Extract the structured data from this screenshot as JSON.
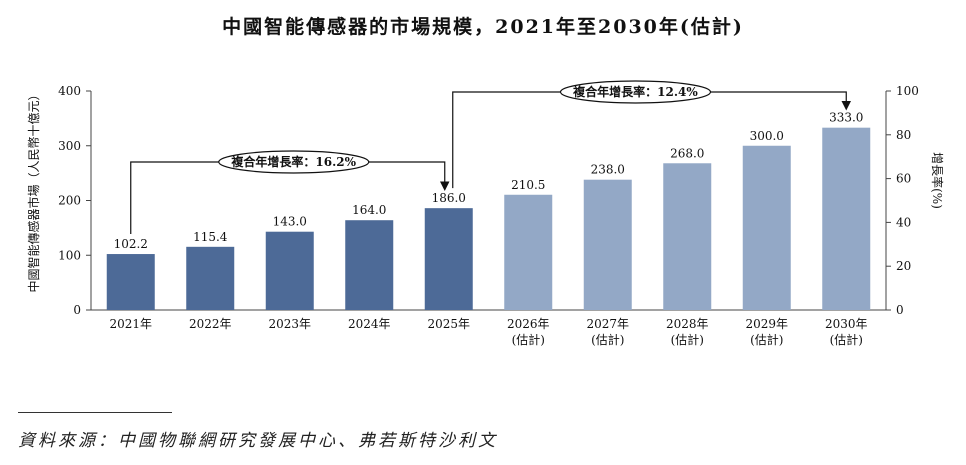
{
  "title": "中國智能傳感器的市場規模，2021年至2030年(估計)",
  "source": "資料來源：中國物聯網研究發展中心、弗若斯特沙利文",
  "colors": {
    "actual": "#4d6a97",
    "forecast": "#93a8c6",
    "axis": "#444444"
  },
  "chart_data": {
    "type": "bar",
    "categories": [
      "2021年",
      "2022年",
      "2023年",
      "2024年",
      "2025年",
      "2026年",
      "2027年",
      "2028年",
      "2029年",
      "2030年"
    ],
    "category_sublabels": [
      "",
      "",
      "",
      "",
      "",
      "(估計)",
      "(估計)",
      "(估計)",
      "(估計)",
      "(估計)"
    ],
    "values": [
      102.2,
      115.4,
      143.0,
      164.0,
      186.0,
      210.5,
      238.0,
      268.0,
      300.0,
      333.0
    ],
    "value_labels": [
      "102.2",
      "115.4",
      "143.0",
      "164.0",
      "186.0",
      "210.5",
      "238.0",
      "268.0",
      "300.0",
      "333.0"
    ],
    "forecast_from_index": 5,
    "ylabel": "中國智能傳感器市場（人民幣十億元）",
    "ylim": [
      0,
      400
    ],
    "yticks": [
      0,
      100,
      200,
      300,
      400
    ],
    "y2label": "增長率(%)",
    "y2lim": [
      0,
      100
    ],
    "y2ticks": [
      0,
      20,
      40,
      60,
      80,
      100
    ],
    "grid": false,
    "annotations": [
      {
        "text": "複合年增長率：16.2%",
        "from_index": 0,
        "to_index": 4
      },
      {
        "text": "複合年增長率：12.4%",
        "from_index": 4,
        "to_index": 9
      }
    ]
  }
}
